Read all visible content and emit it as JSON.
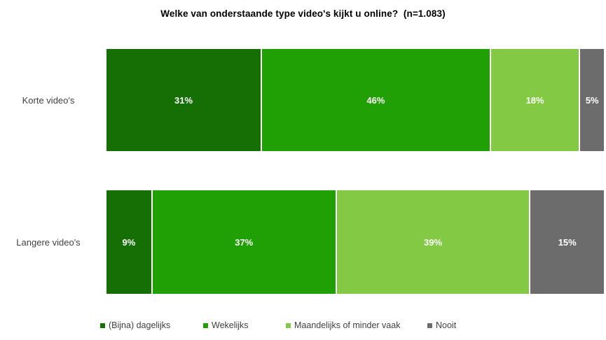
{
  "title": "Welke van onderstaande type video's kijkt u online?  (n=1.083)",
  "chart_data": {
    "type": "bar",
    "subtype": "horizontal-stacked-100",
    "title": "Welke van onderstaande type video's kijkt u online?  (n=1.083)",
    "categories": [
      "Korte video's",
      "Langere video's"
    ],
    "series": [
      {
        "name": "(Bijna) dagelijks",
        "color": "#156F04",
        "values": [
          31,
          9
        ]
      },
      {
        "name": "Wekelijks",
        "color": "#21A005",
        "values": [
          46,
          37
        ]
      },
      {
        "name": "Maandelijks of minder vaak",
        "color": "#83C943",
        "values": [
          18,
          39
        ]
      },
      {
        "name": "Nooit",
        "color": "#6C6C6C",
        "values": [
          5,
          15
        ]
      }
    ],
    "value_label_format": "{value}%",
    "value_labels": [
      [
        "31%",
        "46%",
        "18%",
        "5%"
      ],
      [
        "9%",
        "37%",
        "39%",
        "15%"
      ]
    ],
    "xlim": [
      0,
      100
    ],
    "grid": false,
    "legend_position": "bottom",
    "legend": [
      "(Bijna) dagelijks",
      "Wekelijks",
      "Maandelijks of minder vaak",
      "Nooit"
    ]
  },
  "colors": {
    "background": "#FFFFFF",
    "title_text": "#000000",
    "category_text": "#404040",
    "value_label_text": "#FFFFFF",
    "legend_text": "#404040"
  }
}
